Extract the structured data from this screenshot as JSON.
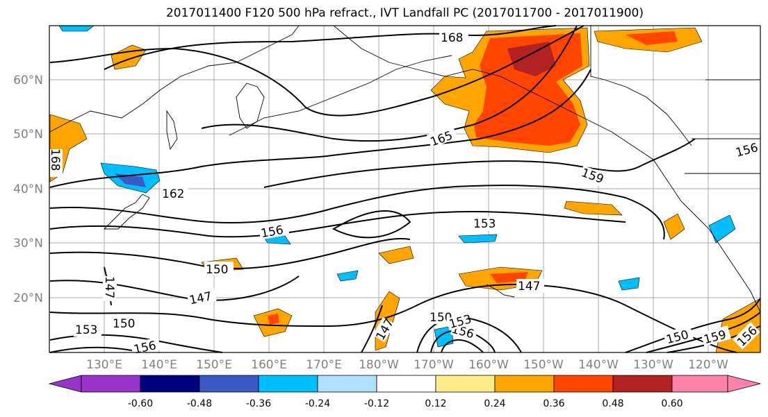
{
  "title": "2017011400 F120 500 hPa refract., IVT Landfall PC (2017011700 - 2017011900)",
  "map": {
    "lon_ticks": [
      "130°E",
      "140°E",
      "150°E",
      "160°E",
      "170°E",
      "180°W",
      "170°W",
      "160°W",
      "150°W",
      "140°W",
      "130°W",
      "120°W"
    ],
    "lat_ticks": [
      "60°N",
      "50°N",
      "40°N",
      "30°N",
      "20°N"
    ],
    "contour_labels": [
      "168",
      "165",
      "159",
      "162",
      "156",
      "153",
      "150",
      "147",
      "147",
      "150",
      "147",
      "153",
      "150",
      "156",
      "153",
      "156",
      "150",
      "159",
      "156",
      "156",
      "168"
    ],
    "gridlines": true,
    "contour_color": "#000000"
  },
  "colorbar": {
    "colors": [
      "#9933cc",
      "#000080",
      "#3a5bc7",
      "#00bfff",
      "#b0e0ff",
      "#ffffff",
      "#ffec8b",
      "#ffa500",
      "#ff4500",
      "#b22222",
      "#ff82ab"
    ],
    "tick_labels": [
      "-0.60",
      "-0.48",
      "-0.36",
      "-0.24",
      "-0.12",
      "0.12",
      "0.24",
      "0.36",
      "0.48",
      "0.60"
    ]
  }
}
